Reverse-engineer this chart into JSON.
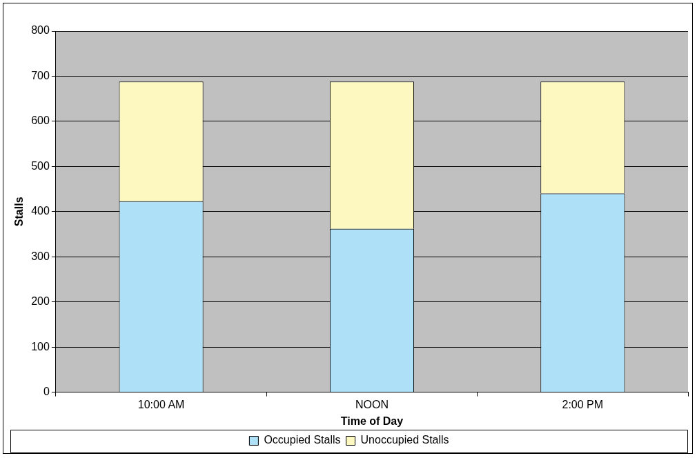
{
  "chart_data": {
    "type": "bar",
    "stacked": true,
    "xlabel": "Time of Day",
    "ylabel": "Stalls",
    "categories": [
      "10:00 AM",
      "NOON",
      "2:00 PM"
    ],
    "series": [
      {
        "name": "Occupied Stalls",
        "color": "#aee0f8",
        "values": [
          423,
          362,
          440
        ]
      },
      {
        "name": "Unoccupied Stalls",
        "color": "#fcf8c0",
        "values": [
          265,
          326,
          248
        ]
      }
    ],
    "ylim": [
      0,
      800
    ],
    "yticks": [
      0,
      100,
      200,
      300,
      400,
      500,
      600,
      700,
      800
    ],
    "grid": "y",
    "legend": "bottom"
  }
}
